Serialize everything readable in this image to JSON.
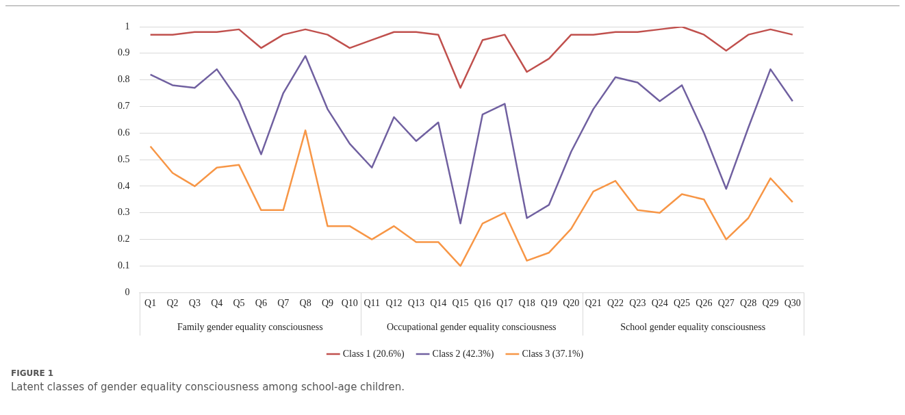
{
  "chart_data": {
    "type": "line",
    "title": "FIGURE 1",
    "subtitle": "Latent classes of gender equality consciousness among school-age children.",
    "categories": [
      "Q1",
      "Q2",
      "Q3",
      "Q4",
      "Q5",
      "Q6",
      "Q7",
      "Q8",
      "Q9",
      "Q10",
      "Q11",
      "Q12",
      "Q13",
      "Q14",
      "Q15",
      "Q16",
      "Q17",
      "Q18",
      "Q19",
      "Q20",
      "Q21",
      "Q22",
      "Q23",
      "Q24",
      "Q25",
      "Q26",
      "Q27",
      "Q28",
      "Q29",
      "Q30"
    ],
    "annotations": [
      "Family gender equality consciousness",
      "Occupational gender equality consciousness",
      "School gender equality consciousness"
    ],
    "series": [
      {
        "name": "Class 1 (20.6%)",
        "color": "#c0504d",
        "values": [
          0.97,
          0.97,
          0.98,
          0.98,
          0.99,
          0.92,
          0.97,
          0.99,
          0.97,
          0.92,
          0.95,
          0.98,
          0.98,
          0.97,
          0.77,
          0.95,
          0.97,
          0.83,
          0.88,
          0.97,
          0.97,
          0.98,
          0.98,
          0.99,
          1.0,
          0.97,
          0.91,
          0.97,
          0.99,
          0.97
        ]
      },
      {
        "name": "Class 2 (42.3%)",
        "color": "#7060a0",
        "values": [
          0.82,
          0.78,
          0.77,
          0.84,
          0.72,
          0.52,
          0.75,
          0.89,
          0.69,
          0.56,
          0.47,
          0.66,
          0.57,
          0.64,
          0.26,
          0.67,
          0.71,
          0.28,
          0.33,
          0.53,
          0.69,
          0.81,
          0.79,
          0.72,
          0.78,
          0.6,
          0.39,
          0.62,
          0.84,
          0.72
        ]
      },
      {
        "name": "Class 3 (37.1%)",
        "color": "#f79646",
        "values": [
          0.55,
          0.45,
          0.4,
          0.47,
          0.48,
          0.31,
          0.31,
          0.61,
          0.25,
          0.25,
          0.2,
          0.25,
          0.19,
          0.19,
          0.1,
          0.26,
          0.3,
          0.12,
          0.15,
          0.24,
          0.38,
          0.42,
          0.31,
          0.3,
          0.37,
          0.35,
          0.2,
          0.28,
          0.43,
          0.34
        ]
      }
    ],
    "ylim": [
      0,
      1
    ],
    "yticks": [
      0,
      0.1,
      0.2,
      0.3,
      0.4,
      0.5,
      0.6,
      0.7,
      0.8,
      0.9,
      1
    ],
    "grid": "y",
    "legend": "bottom",
    "marker": "none",
    "line_style": "solid"
  }
}
